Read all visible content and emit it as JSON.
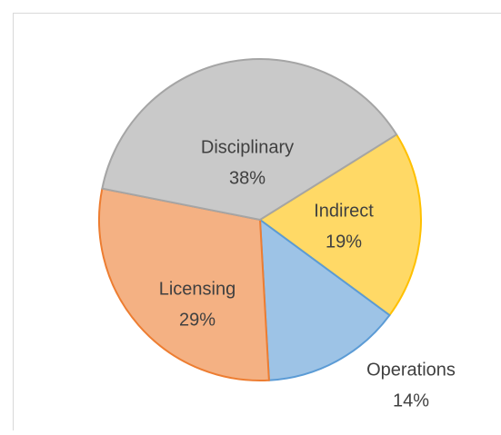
{
  "chart_data": {
    "type": "pie",
    "categories": [
      "Indirect",
      "Operations",
      "Licensing",
      "Disciplinary"
    ],
    "values": [
      19,
      14,
      29,
      38
    ],
    "value_labels": [
      "19%",
      "14%",
      "29%",
      "38%"
    ],
    "colors": [
      "#ffd966",
      "#9dc3e6",
      "#f4b183",
      "#c9c9c9"
    ],
    "edge_colors": [
      "#ffc000",
      "#5b9bd5",
      "#ed7d31",
      "#a5a5a5"
    ]
  }
}
